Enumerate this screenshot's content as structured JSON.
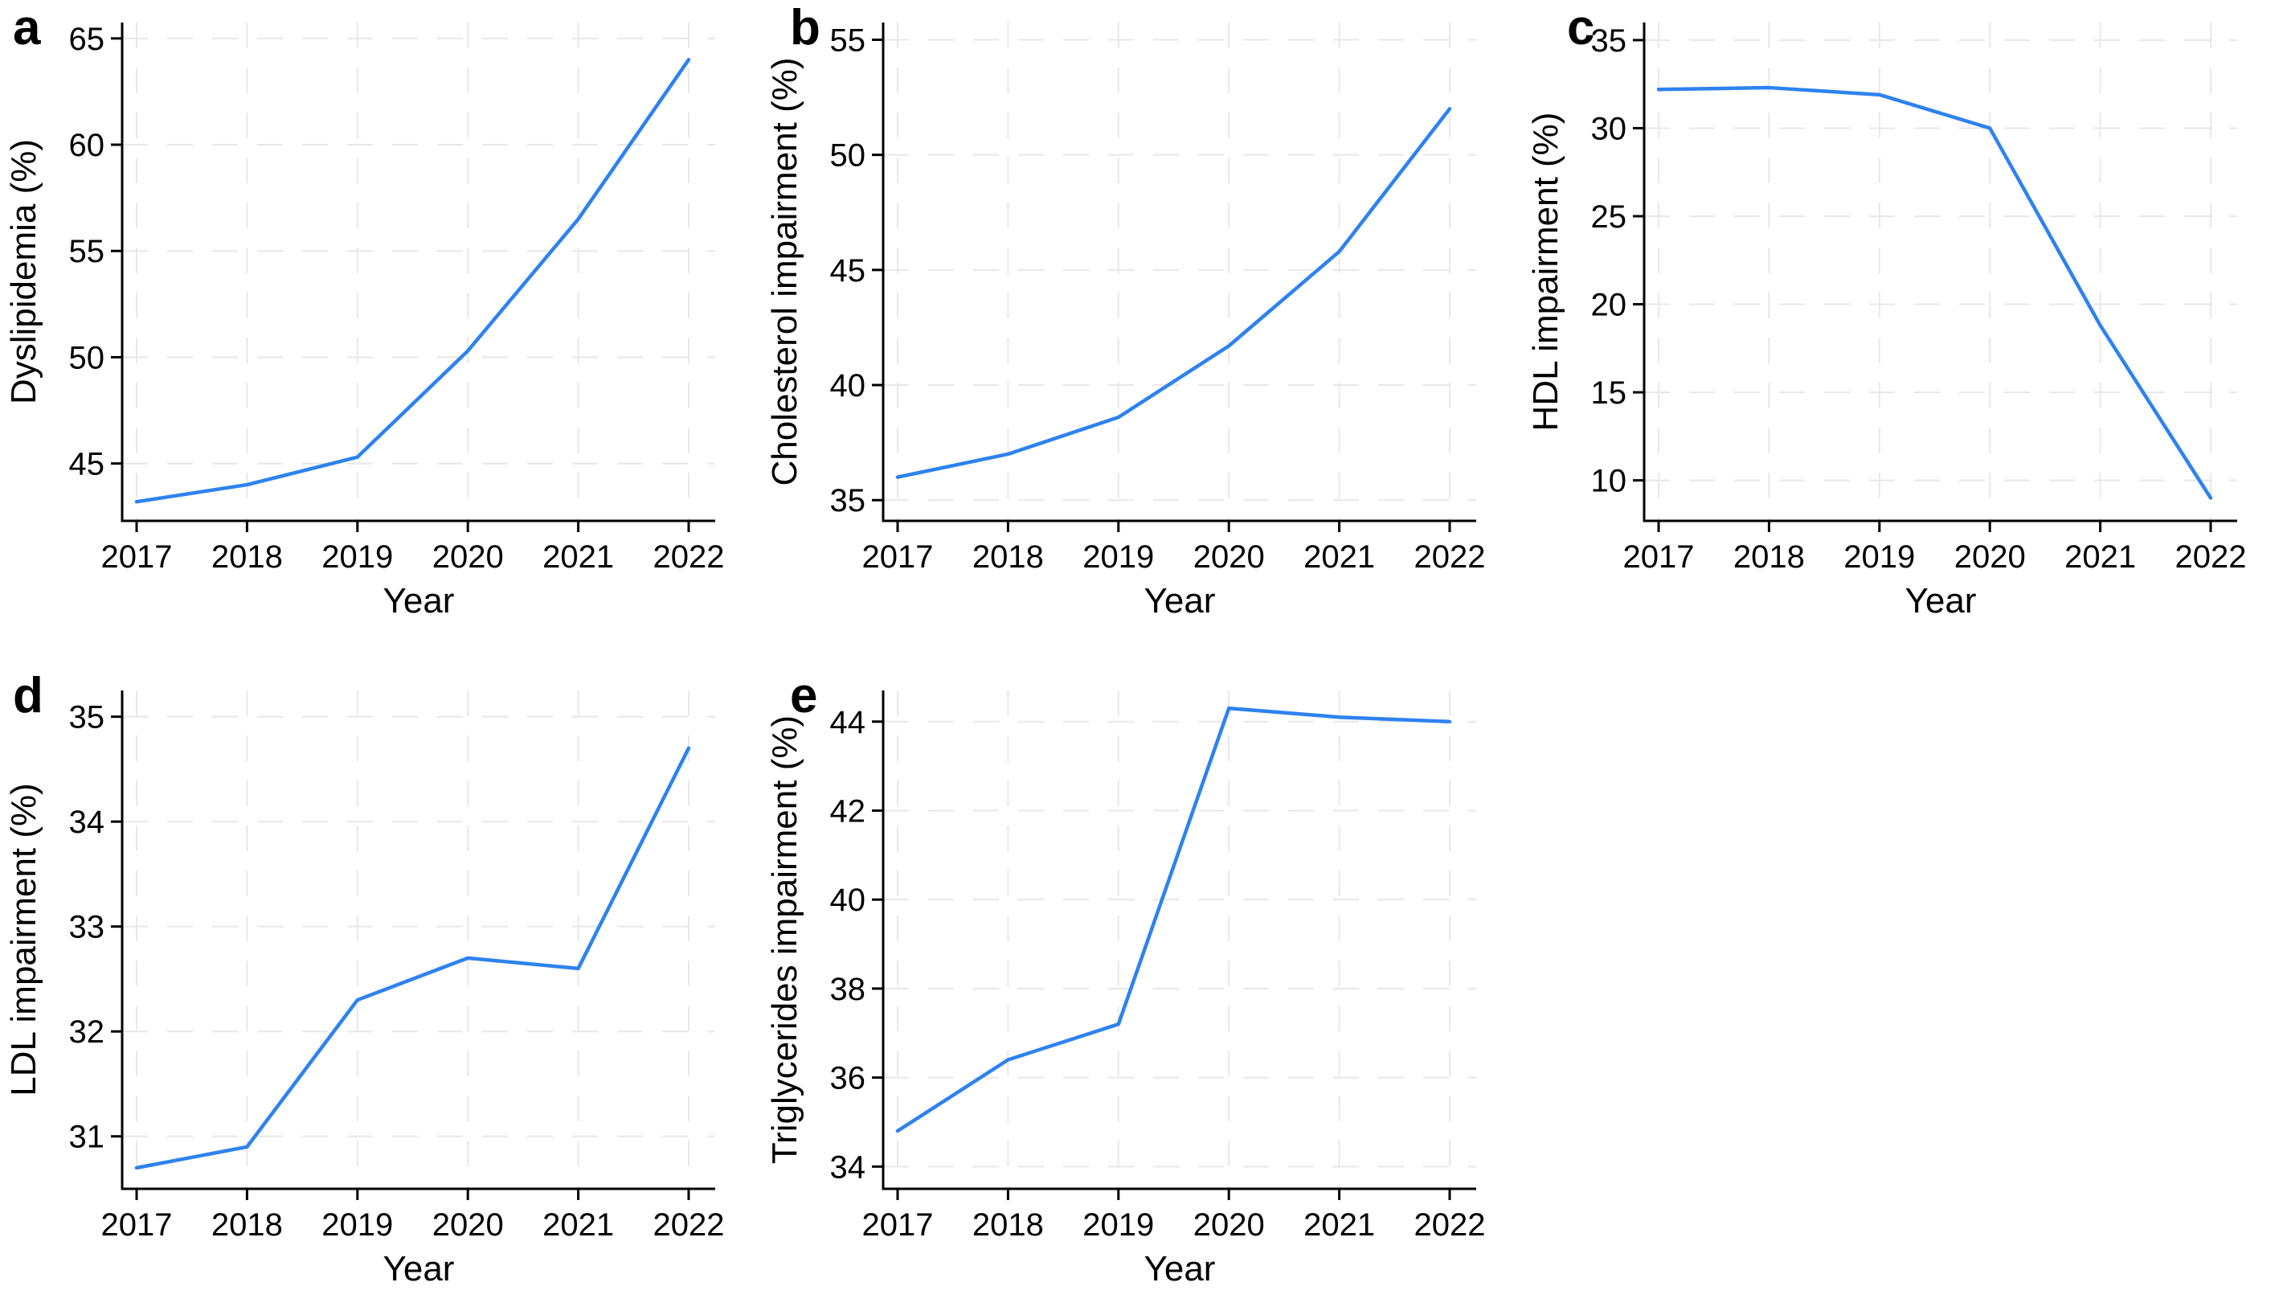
{
  "figure": {
    "background": "#ffffff",
    "line_color": "#2e82ef",
    "grid_color": "#e8e8e8",
    "axis_color": "#000000",
    "text_color": "#000000"
  },
  "chart_data": [
    {
      "type": "line",
      "panel_letter": "a",
      "xlabel": "Year",
      "ylabel": "Dyslipidemia (%)",
      "categories": [
        "2017",
        "2018",
        "2019",
        "2020",
        "2021",
        "2022"
      ],
      "values": [
        43.2,
        44.0,
        45.3,
        50.3,
        56.5,
        64.0
      ],
      "yticks": [
        45,
        50,
        55,
        60,
        65
      ],
      "ylim": [
        42.3,
        65.75
      ],
      "grid": true,
      "legend": "none",
      "line_color": "#2e82ef"
    },
    {
      "type": "line",
      "panel_letter": "b",
      "xlabel": "Year",
      "ylabel": "Cholesterol impairment (%)",
      "categories": [
        "2017",
        "2018",
        "2019",
        "2020",
        "2021",
        "2022"
      ],
      "values": [
        36.0,
        37.0,
        38.6,
        41.7,
        45.8,
        52.0
      ],
      "yticks": [
        35,
        40,
        45,
        50,
        55
      ],
      "ylim": [
        34.1,
        55.75
      ],
      "grid": true,
      "legend": "none",
      "line_color": "#2e82ef"
    },
    {
      "type": "line",
      "panel_letter": "c",
      "xlabel": "Year",
      "ylabel": "HDL impairment (%)",
      "categories": [
        "2017",
        "2018",
        "2019",
        "2020",
        "2021",
        "2022"
      ],
      "values": [
        32.2,
        32.3,
        31.9,
        30.0,
        18.8,
        9.0
      ],
      "yticks": [
        10,
        15,
        20,
        25,
        30,
        35
      ],
      "ylim": [
        7.7,
        36.0
      ],
      "grid": true,
      "legend": "none",
      "line_color": "#2e82ef"
    },
    {
      "type": "line",
      "panel_letter": "d",
      "xlabel": "Year",
      "ylabel": "LDL impairment (%)",
      "categories": [
        "2017",
        "2018",
        "2019",
        "2020",
        "2021",
        "2022"
      ],
      "values": [
        30.7,
        30.9,
        32.3,
        32.7,
        32.6,
        34.7
      ],
      "yticks": [
        31,
        32,
        33,
        34,
        35
      ],
      "ylim": [
        30.5,
        35.25
      ],
      "grid": true,
      "legend": "none",
      "line_color": "#2e82ef"
    },
    {
      "type": "line",
      "panel_letter": "e",
      "xlabel": "Year",
      "ylabel": "Triglycerides impairment (%)",
      "categories": [
        "2017",
        "2018",
        "2019",
        "2020",
        "2021",
        "2022"
      ],
      "values": [
        34.8,
        36.4,
        37.2,
        44.3,
        44.1,
        44.0
      ],
      "yticks": [
        34,
        36,
        38,
        40,
        42,
        44
      ],
      "ylim": [
        33.5,
        44.7
      ],
      "grid": true,
      "legend": "none",
      "line_color": "#2e82ef"
    }
  ]
}
